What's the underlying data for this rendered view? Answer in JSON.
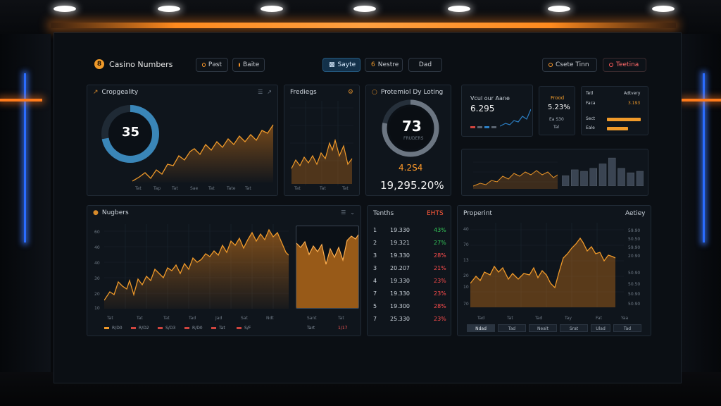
{
  "app": {
    "title": "Casino Numbers",
    "brand_icon": "8"
  },
  "toolbar": {
    "btn1": "Pəst",
    "btn2": "Baite",
    "btn3": "Sayte",
    "btn4": "Nestre",
    "btn4_icon": "6",
    "btn5": "Dad",
    "btn6": "Csete Tinn",
    "btn7": "Teetina"
  },
  "panel_prob": {
    "title": "Cropgeality",
    "gauge": "35",
    "gauge_fraction": 0.72,
    "xlabels": [
      "Tat",
      "Tap",
      "Tat",
      "Sae",
      "Tat",
      "Tate",
      "Tat"
    ]
  },
  "panel_trend": {
    "title": "Frediegs",
    "xlabels": [
      "Tat",
      "Tat",
      "Tat"
    ]
  },
  "panel_potential": {
    "title": "Protemiol Dy Loting",
    "gauge": "73",
    "gauge_caption": "FRUDERS",
    "gauge_fraction": 0.78,
    "orange_value": "4.2S4",
    "percent_value": "19,295.20%"
  },
  "panel_stats": {
    "title": "Vcul our Aane",
    "value": "6.295",
    "card_title": "Frood",
    "card_value": "5.23%",
    "card_sub1": "Ea S30",
    "card_sub2": "Tal",
    "list": [
      {
        "label": "Tetl",
        "value": "Adtvery"
      },
      {
        "label": "Faca",
        "value": "3.193"
      },
      {
        "label": "Sect",
        "value": ""
      },
      {
        "label": "Eale",
        "value": ""
      }
    ]
  },
  "panel_bars": {
    "values": [
      0.35,
      0.55,
      0.5,
      0.6,
      0.75,
      0.95,
      0.6,
      0.45,
      0.5
    ]
  },
  "panel_numbers": {
    "title": "Nugbers",
    "ylabels": [
      "60",
      "40",
      "40",
      "30",
      "20",
      "10"
    ],
    "xlabels": [
      "Tat",
      "Tat",
      "Tat",
      "Tad",
      "Jad",
      "Sat",
      "Ndt",
      "Sant",
      "Tat"
    ],
    "legend": [
      "R/D0",
      "R/D2",
      "S/D3",
      "R/D0",
      "Tat",
      "S/F",
      "Tart",
      "1/17"
    ]
  },
  "panel_tenths": {
    "title": "Tenths",
    "header_right": "EHTS",
    "rows": [
      {
        "n": "1",
        "val": "19.330",
        "pct": "43%",
        "dir": "up"
      },
      {
        "n": "2",
        "val": "19.321",
        "pct": "27%",
        "dir": "up"
      },
      {
        "n": "3",
        "val": "19.330",
        "pct": "28%",
        "dir": "down"
      },
      {
        "n": "3",
        "val": "20.207",
        "pct": "21%",
        "dir": "down"
      },
      {
        "n": "4",
        "val": "19.330",
        "pct": "23%",
        "dir": "down"
      },
      {
        "n": "7",
        "val": "19.330",
        "pct": "23%",
        "dir": "down"
      },
      {
        "n": "5",
        "val": "19.300",
        "pct": "28%",
        "dir": "down"
      },
      {
        "n": "7",
        "val": "25.330",
        "pct": "23%",
        "dir": "down"
      }
    ]
  },
  "panel_property": {
    "title": "Properint",
    "action": "Aetiey",
    "ylabels": [
      "40",
      "70",
      "13",
      "20",
      "10",
      "70"
    ],
    "right_labels": [
      "59.90",
      "50.50",
      "59.90",
      "20.90",
      "50.90",
      "50.50",
      "50.90",
      "50.90"
    ],
    "xlabels": [
      "Tad",
      "Tat",
      "Tad",
      "Tay",
      "Fat",
      "Yaa"
    ],
    "tabs": [
      "Ndad",
      "Tad",
      "Nealt",
      "Srat",
      "Ulad",
      "Tad"
    ]
  },
  "colors": {
    "accent": "#f09a2a",
    "up": "#34c759",
    "down": "#ff4d4d",
    "panel": "#0f151c"
  }
}
